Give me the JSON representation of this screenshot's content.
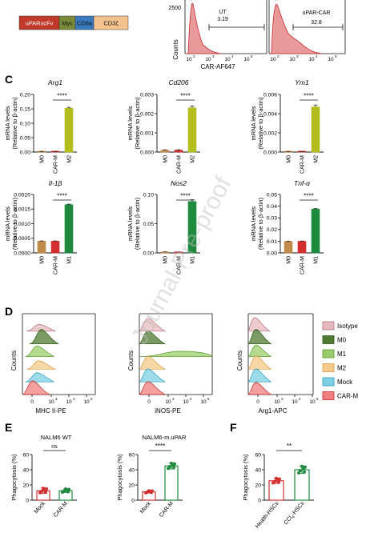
{
  "construct": {
    "segments": [
      {
        "label": "uPARscFv",
        "color": "#c0392b",
        "text_color": "#ffffff"
      },
      {
        "label": "Myc",
        "color": "#7a8b3a",
        "text_color": "#111111"
      },
      {
        "label": "CD8a",
        "color": "#3a7bbf",
        "text_color": "#111111"
      },
      {
        "label": "CD3ζ",
        "color": "#f4c28f",
        "text_color": "#111111"
      }
    ]
  },
  "panel_b": {
    "y_label": "Counts",
    "x_label": "CAR-AF647",
    "y_tick": "2500",
    "x_ticks": [
      "10",
      "10",
      "10",
      "10"
    ],
    "x_exps": [
      "2",
      "3",
      "4",
      "5"
    ],
    "gates": [
      {
        "name": "UT",
        "percent": "3.19"
      },
      {
        "name": "uPAR-CAR",
        "percent": "32.8"
      }
    ]
  },
  "colors": {
    "M0": "#c08a4a",
    "CAR-M": "#d32f2f",
    "M2": "#b5bd1e",
    "M1": "#1e8a3e",
    "Isotype": "#e6b8bd",
    "M0_hist": "#4f7a32",
    "M1_hist": "#9acd6a",
    "M2_hist": "#f5c98a",
    "Mock": "#7ecfe3",
    "CARM_hist": "#f08080"
  },
  "panel_labels": {
    "c": "C",
    "d": "D",
    "e": "E",
    "f": "F"
  },
  "y_axis_label": {
    "line1": "mRNA levels",
    "line2": "(Relative to β-actin)"
  },
  "sig_four": "****",
  "sig_two": "**",
  "sig_ns": "ns",
  "chart_data": [
    {
      "type": "bar",
      "title": "Arg1",
      "categories": [
        "M0",
        "CAR-M",
        "M2"
      ],
      "values": [
        0.0006,
        0.0006,
        0.152
      ],
      "errors": [
        0.0002,
        0.0002,
        0.003
      ],
      "ylim": [
        0,
        0.2
      ],
      "yticks": [
        "0.00",
        "0.05",
        "0.10",
        "0.15",
        "0.20"
      ],
      "sig": "****",
      "bar_colors": [
        "M0",
        "CAR-M",
        "M2"
      ]
    },
    {
      "type": "bar",
      "title": "Cd206",
      "categories": [
        "M0",
        "CAR-M",
        "M2"
      ],
      "values": [
        0.0001,
        0.0001,
        0.0023
      ],
      "errors": [
        2e-05,
        2e-05,
        0.0001
      ],
      "ylim": [
        0,
        0.003
      ],
      "yticks": [
        "0.000",
        "0.001",
        "0.002",
        "0.003"
      ],
      "sig": "****",
      "bar_colors": [
        "M0",
        "CAR-M",
        "M2"
      ]
    },
    {
      "type": "bar",
      "title": "Ym1",
      "categories": [
        "M0",
        "CAR-M",
        "M2"
      ],
      "values": [
        5e-05,
        5e-05,
        0.0047
      ],
      "errors": [
        1e-05,
        1e-05,
        0.0002
      ],
      "ylim": [
        0,
        0.006
      ],
      "yticks": [
        "0.000",
        "0.002",
        "0.004",
        "0.006"
      ],
      "sig": "****",
      "bar_colors": [
        "M0",
        "CAR-M",
        "M2"
      ]
    },
    {
      "type": "bar",
      "title": "Il-1β",
      "categories": [
        "M0",
        "CAR-M",
        "M1"
      ],
      "values": [
        0.0004,
        0.0004,
        0.00165
      ],
      "errors": [
        1e-05,
        1e-05,
        2e-05
      ],
      "ylim": [
        0,
        0.002
      ],
      "yticks": [
        "0.0000",
        "0.0005",
        "0.0010",
        "0.0015",
        "0.0020"
      ],
      "sig": "****",
      "bar_colors": [
        "M0",
        "CAR-M",
        "M1"
      ]
    },
    {
      "type": "bar",
      "title": "Nos2",
      "categories": [
        "M0",
        "CAR-M",
        "M1"
      ],
      "values": [
        0.0015,
        0.0015,
        0.088
      ],
      "errors": [
        0.0003,
        0.0003,
        0.003
      ],
      "ylim": [
        0,
        0.1
      ],
      "yticks": [
        "0.00",
        "0.05",
        "0.10"
      ],
      "sig": "****",
      "bar_colors": [
        "M0",
        "CAR-M",
        "M1"
      ]
    },
    {
      "type": "bar",
      "title": "Tnf-α",
      "categories": [
        "M0",
        "CAR-M",
        "M1"
      ],
      "values": [
        0.0098,
        0.0099,
        0.0375
      ],
      "errors": [
        0.0003,
        0.0003,
        0.0004
      ],
      "ylim": [
        0,
        0.05
      ],
      "yticks": [
        "0.00",
        "0.01",
        "0.02",
        "0.03",
        "0.04",
        "0.05"
      ],
      "sig": "****",
      "bar_colors": [
        "M0",
        "CAR-M",
        "M1"
      ]
    },
    {
      "type": "bar",
      "title": "NALM6 WT",
      "categories": [
        "Mock",
        "CAR-M"
      ],
      "values": [
        12.5,
        12.5
      ],
      "errors": [
        3.5,
        2.5
      ],
      "ylim": [
        0,
        60
      ],
      "yticks": [
        "0",
        "20",
        "40",
        "60"
      ],
      "ylabel": "Phagocytosis (%)",
      "sig": "ns",
      "bar_colors": [
        "CAR-M",
        "M1"
      ]
    },
    {
      "type": "bar",
      "title": "NALM6-m.uPAR",
      "categories": [
        "Mock",
        "CAR-M"
      ],
      "values": [
        11.0,
        45.0
      ],
      "errors": [
        1.5,
        4.0
      ],
      "ylim": [
        0,
        60
      ],
      "yticks": [
        "0",
        "20",
        "40",
        "60"
      ],
      "ylabel": "Phagocytosis (%)",
      "sig": "****",
      "bar_colors": [
        "CAR-M",
        "M1"
      ]
    },
    {
      "type": "bar",
      "title": "",
      "categories": [
        "Health-HSCs",
        "CCl4-HSCs"
      ],
      "values": [
        25.5,
        40.0
      ],
      "errors": [
        3.5,
        5.0
      ],
      "ylim": [
        0,
        60
      ],
      "yticks": [
        "0",
        "20",
        "40",
        "60"
      ],
      "ylabel": "Phagocytosis (%)",
      "sig": "**",
      "bar_colors": [
        "CAR-M",
        "M1"
      ]
    }
  ],
  "panel_d": {
    "y_label": "Counts",
    "x_labels": [
      "MHC II-PE",
      "iNOS-PE",
      "Arg1-APC"
    ],
    "legend": [
      "Isotype",
      "M0",
      "M1",
      "M2",
      "Mock",
      "CAR-M"
    ]
  },
  "panel_f_ccl4_label": {
    "pre": "CCl",
    "sub": "4",
    "post": "-HSCs"
  },
  "watermark": "Journal Pre-proof"
}
